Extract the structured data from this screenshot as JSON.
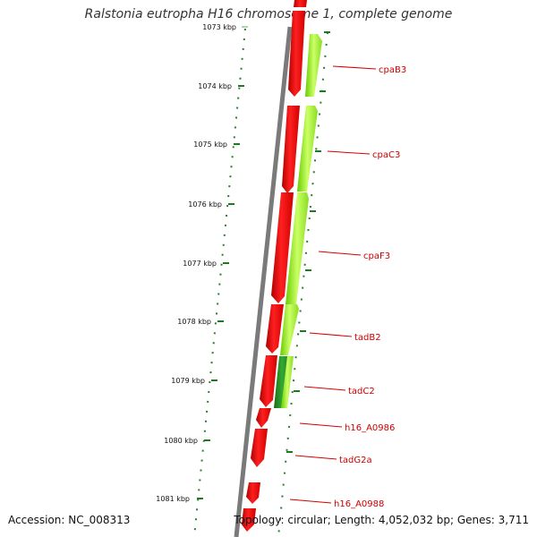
{
  "title": "Ralstonia eutropha H16 chromosome 1, complete genome",
  "footer": {
    "accession": "Accession: NC_008313",
    "stats": "Topology: circular; Length: 4,052,032 bp; Genes: 3,711"
  },
  "colors": {
    "forward_cds": "#ff0000",
    "reverse_cds": "#99ff33",
    "reverse_cds_dark": "#228b22",
    "tick": "#2e7d2e",
    "backbone": "#808080",
    "label": "#cc0000"
  },
  "ruler": {
    "ticks": [
      {
        "label": "1073 kbp"
      },
      {
        "label": "1074 kbp"
      },
      {
        "label": "1075 kbp"
      },
      {
        "label": "1076 kbp"
      },
      {
        "label": "1077 kbp"
      },
      {
        "label": "1078 kbp"
      },
      {
        "label": "1079 kbp"
      },
      {
        "label": "1080 kbp"
      },
      {
        "label": "1081 kbp"
      }
    ]
  },
  "genes": [
    {
      "name": "cpaB3",
      "strand": "reverse"
    },
    {
      "name": "cpaC3",
      "strand": "reverse"
    },
    {
      "name": "cpaF3",
      "strand": "reverse"
    },
    {
      "name": "tadB2",
      "strand": "reverse"
    },
    {
      "name": "tadC2",
      "strand": "reverse"
    },
    {
      "name": "h16_A0986",
      "strand": "forward"
    },
    {
      "name": "tadG2a",
      "strand": "forward"
    },
    {
      "name": "h16_A0988",
      "strand": "forward"
    }
  ]
}
